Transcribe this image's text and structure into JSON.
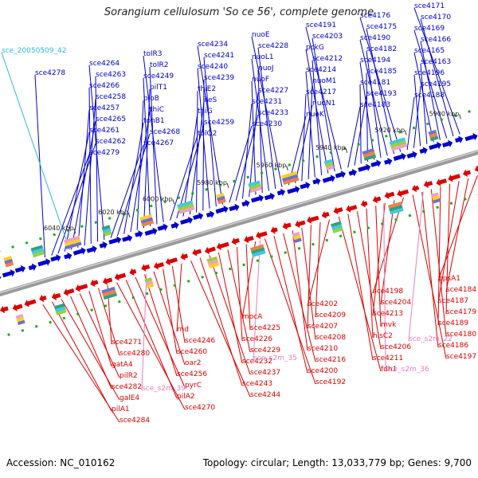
{
  "title": "Sorangium cellulosum 'So ce 56', complete genome",
  "footer": {
    "accession": "Accession: NC_010162",
    "summary": "Topology: circular; Length: 13,033,779 bp; Genes: 9,700"
  },
  "colors": {
    "forward": "#0000cc",
    "reverse": "#dd0000",
    "rna": "#e880c0",
    "misc": "#30b8e0",
    "axis": "#888888"
  },
  "ticks": [
    "6040 kbp",
    "6020 kbp",
    "6000 kbp",
    "5980 kbp",
    "5960 kbp",
    "5940 kbp",
    "5920 kbp",
    "5900 kbp"
  ],
  "forward_labels": [
    "sce4171",
    "sce4170",
    "sce4169",
    "sce4166",
    "sce4165",
    "sce4163",
    "sce4196",
    "sce4195",
    "sce4188",
    "sce4176",
    "sce4175",
    "sce4190",
    "sce4182",
    "sce4194",
    "sce4185",
    "sce4181",
    "sce4193",
    "sce4183",
    "sce4191",
    "sce4203",
    "pckG",
    "sce4212",
    "sce4214",
    "nuoM1",
    "sce4217",
    "nuoN1",
    "nuoK",
    "nuoE",
    "sce4228",
    "nuoL1",
    "nuoJ",
    "nuoF",
    "sce4227",
    "sce4231",
    "sce4233",
    "sce4230",
    "sce4234",
    "sce4241",
    "sce4240",
    "sce4239",
    "thiE2",
    "ileS",
    "thiG",
    "sce4259",
    "tolQ2",
    "tolR3",
    "tolR2",
    "sce4249",
    "pilT1",
    "bioB",
    "thiC",
    "tonB1",
    "sce4268",
    "sce4267",
    "sce4264",
    "sce4263",
    "sce4266",
    "sce4258",
    "sce4257",
    "sce4265",
    "sce4261",
    "sce4262",
    "sce4279",
    "sce4278"
  ],
  "misc_labels": [
    "sce_20050509_42"
  ],
  "reverse_labels": [
    "ppsA1",
    "sce4184",
    "sce4187",
    "sce4179",
    "sce4189",
    "sce4180",
    "sce4186",
    "sce4197",
    "sce4198",
    "sce4204",
    "sce4213",
    "mvk",
    "hisC2",
    "sce4206",
    "sce4211",
    "fdh1",
    "sce4202",
    "sce4209",
    "sce4207",
    "sce4208",
    "sce4210",
    "sce4216",
    "sce4200",
    "sce4192",
    "mocA",
    "sce4225",
    "sce4226",
    "sce4229",
    "sce4232",
    "sce4237",
    "sce4243",
    "sce4244",
    "rnd",
    "sce4246",
    "sce4260",
    "oar2",
    "sce4256",
    "pyrC",
    "pilA2",
    "sce4270",
    "sce4271",
    "sce4280",
    "gatA4",
    "pilR2",
    "sce4282",
    "galE4",
    "pilA1",
    "sce4284"
  ],
  "rna_labels": [
    "sce_s2m_22",
    "sce_s2m_36",
    "sce_s2m_35",
    "sce_s2m_39"
  ]
}
